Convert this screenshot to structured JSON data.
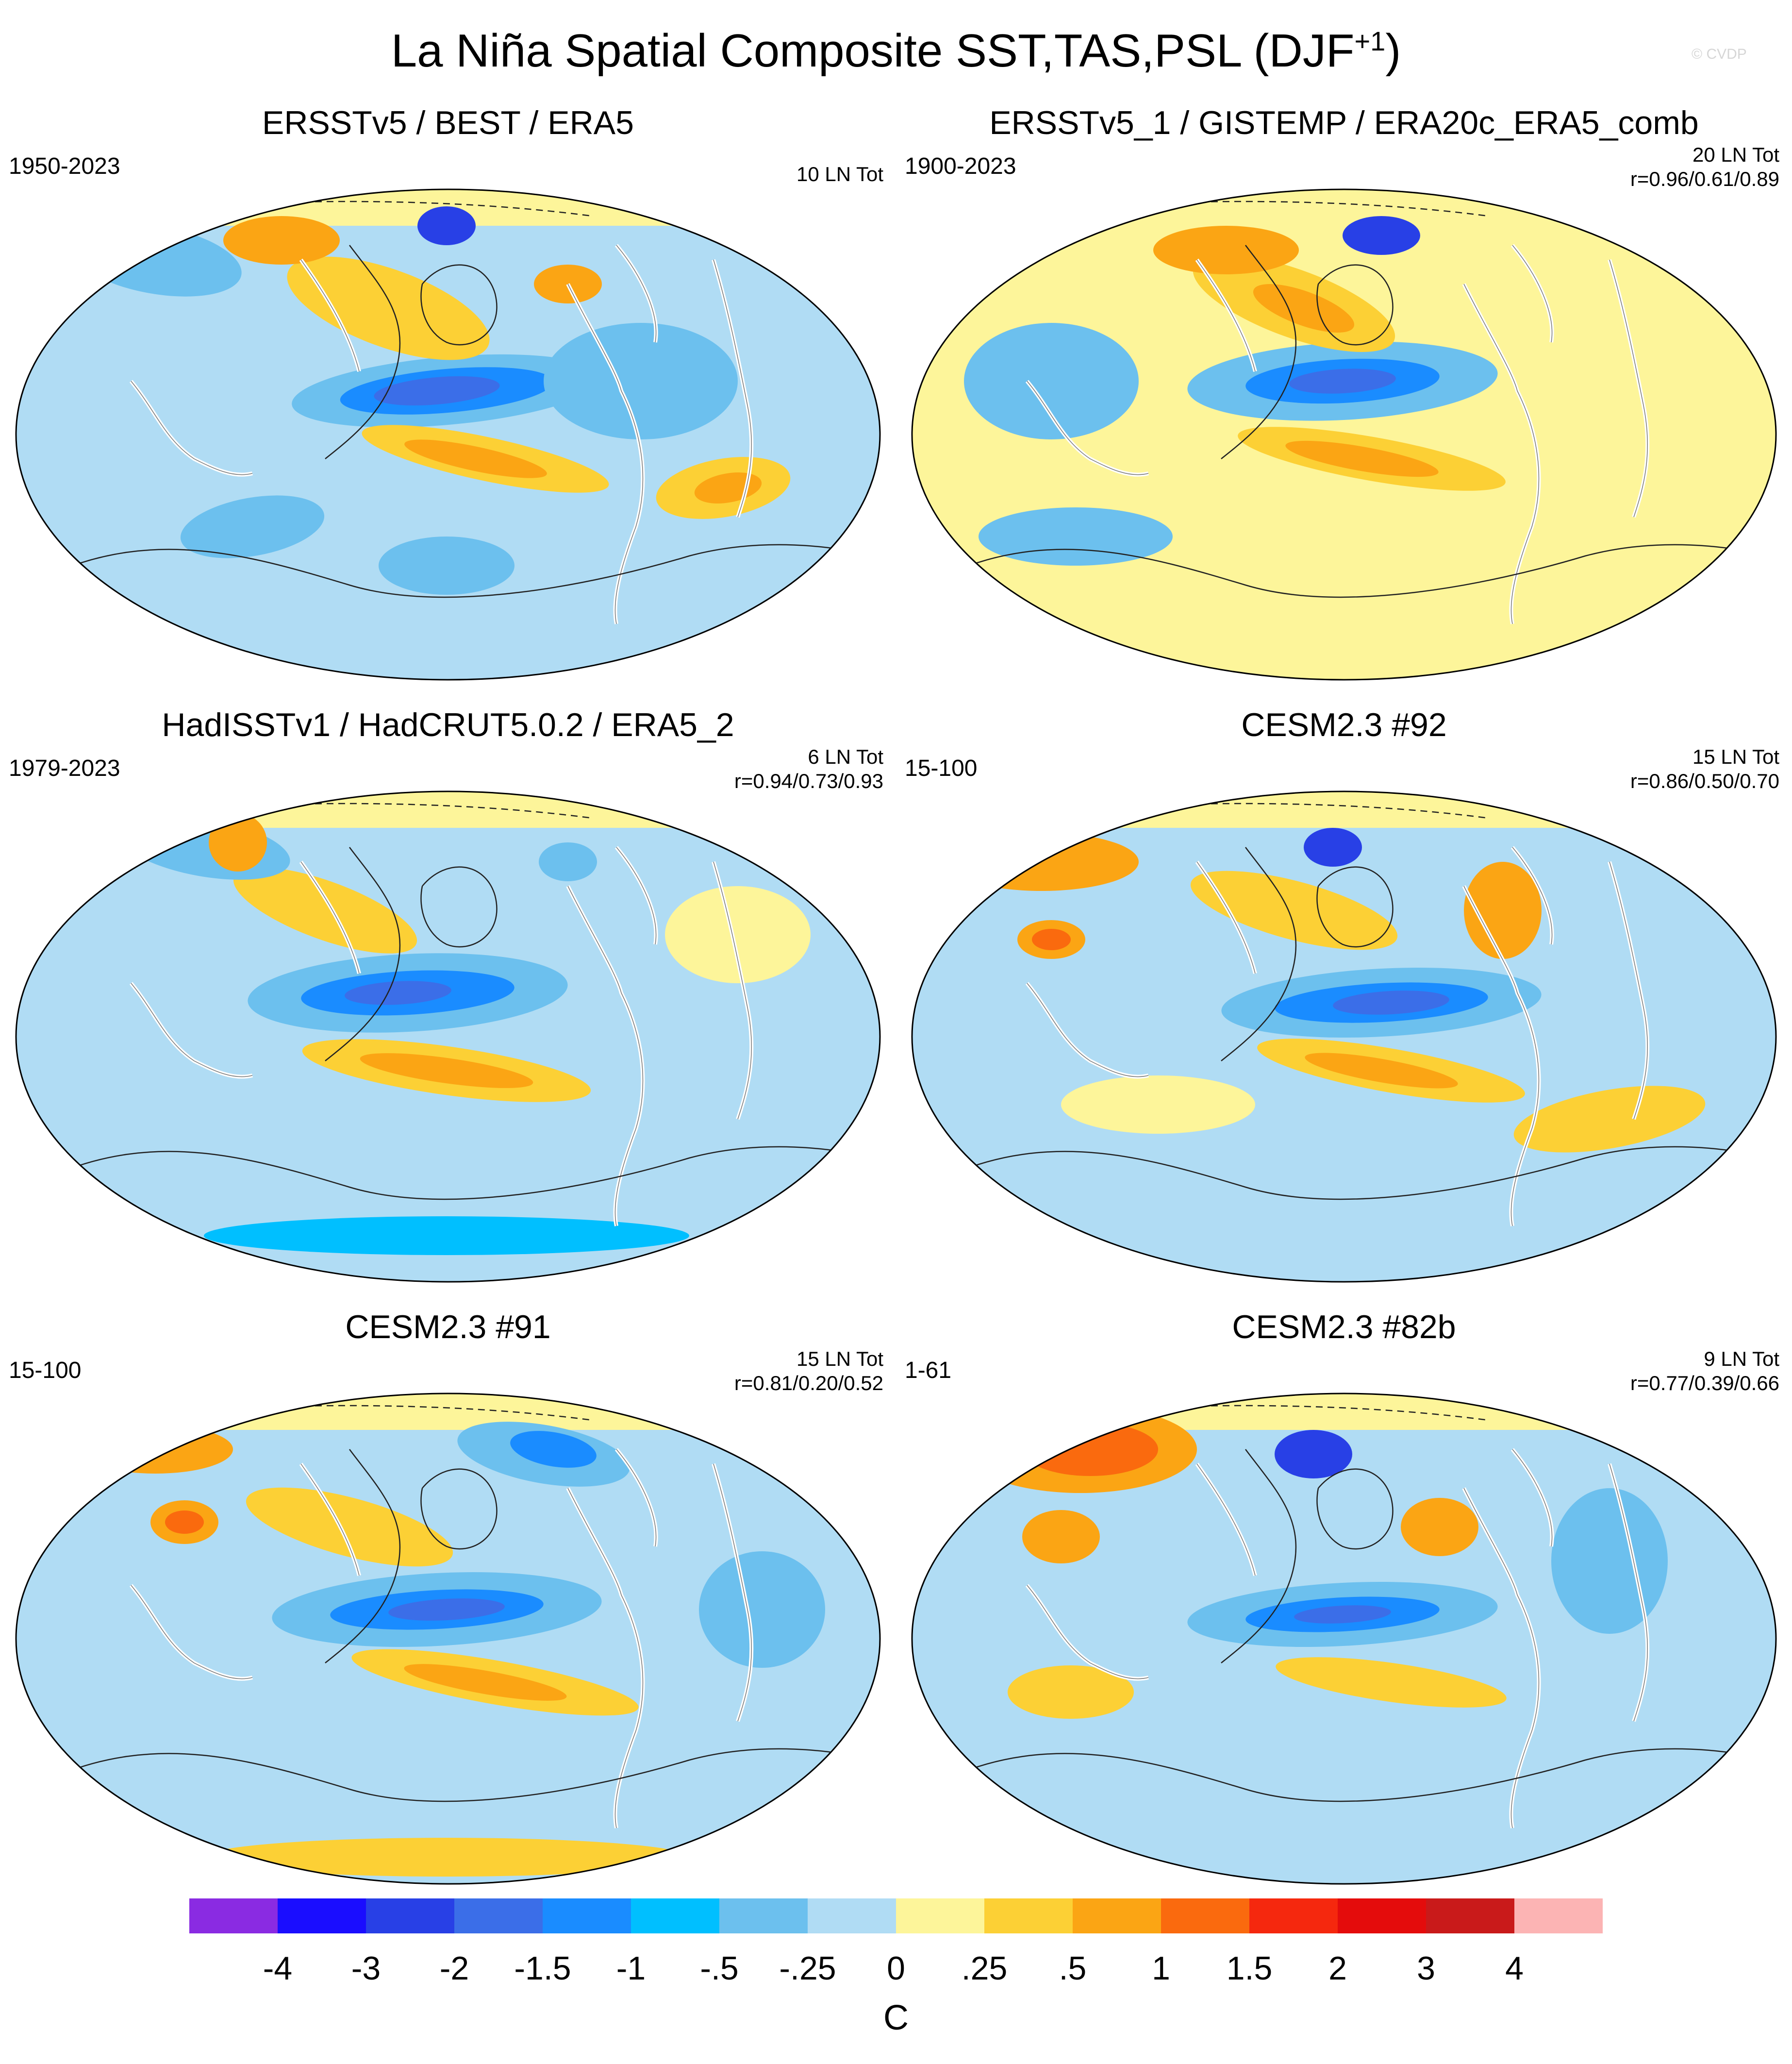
{
  "title": "La Niña Spatial Composite SST,TAS,PSL (DJF",
  "title_sup": "+1",
  "title_close": ")",
  "copyright": "© CVDP",
  "panels": [
    {
      "title": "ERSSTv5 / BEST / ERA5",
      "period": "1950-2023",
      "stat1": "10 LN Tot",
      "stat2": ""
    },
    {
      "title": "ERSSTv5_1 / GISTEMP / ERA20c_ERA5_comb",
      "period": "1900-2023",
      "stat1": "20 LN Tot",
      "stat2": "r=0.96/0.61/0.89"
    },
    {
      "title": "HadISSTv1 / HadCRUT5.0.2 / ERA5_2",
      "period": "1979-2023",
      "stat1": "6 LN Tot",
      "stat2": "r=0.94/0.73/0.93"
    },
    {
      "title": "CESM2.3 #92",
      "period": "15-100",
      "stat1": "15 LN Tot",
      "stat2": "r=0.86/0.50/0.70"
    },
    {
      "title": "CESM2.3 #91",
      "period": "15-100",
      "stat1": "15 LN Tot",
      "stat2": "r=0.81/0.20/0.52"
    },
    {
      "title": "CESM2.3 #82b",
      "period": "1-61",
      "stat1": "9 LN Tot",
      "stat2": "r=0.77/0.39/0.66"
    }
  ],
  "colorbar": {
    "colors": [
      "#8a2be2",
      "#1a0dff",
      "#2840e6",
      "#3b6ee8",
      "#1a8cff",
      "#00bfff",
      "#6cc0ee",
      "#b0dcf4",
      "#fdf59a",
      "#fcd035",
      "#fba514",
      "#fa6a0e",
      "#f5280e",
      "#e40c0c",
      "#c91a1a",
      "#fcb4b4"
    ],
    "labels": [
      "-4",
      "-3",
      "-2",
      "-1.5",
      "-1",
      "-.5",
      "-.25",
      "0",
      ".25",
      ".5",
      "1",
      "1.5",
      "2",
      "3",
      "4"
    ],
    "units": "C"
  }
}
